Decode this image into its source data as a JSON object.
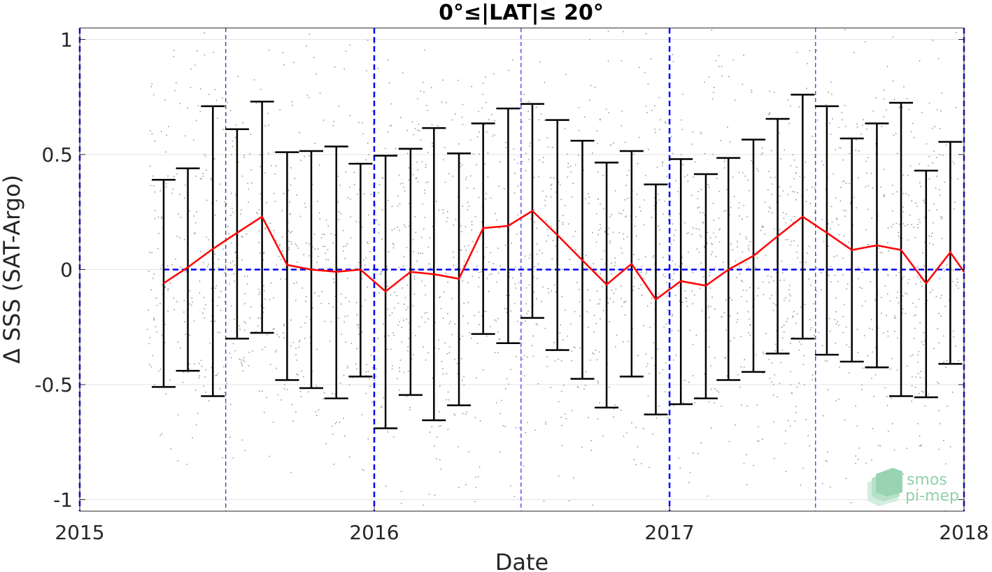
{
  "chart_data": {
    "type": "line",
    "title": "0°≤|LAT|≤ 20°",
    "xlabel": "Date",
    "ylabel": "Δ SSS (SAT-Argo)",
    "xlim": [
      "2015-01-01",
      "2018-01-01"
    ],
    "ylim": [
      -1.05,
      1.05
    ],
    "xtick_labels": [
      "2015",
      "2016",
      "2017",
      "2018"
    ],
    "ytick_values": [
      -1,
      -0.5,
      0,
      0.5,
      1
    ],
    "ytick_labels": [
      "-1",
      "-0.5",
      "0",
      "0.5",
      "1"
    ],
    "grid": true,
    "colors": {
      "mean_line": "#ff0000",
      "error_bars": "#000000",
      "zero_line": "#0000ff",
      "year_lines": "#0000ff",
      "half_year_lines": "#0000ff",
      "scatter": "#9a9a9a"
    },
    "zero_line": 0,
    "year_line_dates": [
      "2015-01-01",
      "2016-01-01",
      "2017-01-01",
      "2018-01-01"
    ],
    "half_year_line_dates": [
      "2015-07-01",
      "2016-07-01",
      "2017-07-01"
    ],
    "series": [
      {
        "type": "errorbar",
        "x": [
          "2015-04-15",
          "2015-05-15",
          "2015-06-15",
          "2015-07-15",
          "2015-08-15",
          "2015-09-15",
          "2015-10-15",
          "2015-11-15",
          "2015-12-15",
          "2016-01-15",
          "2016-02-15",
          "2016-03-15",
          "2016-04-15",
          "2016-05-15",
          "2016-06-15",
          "2016-07-15",
          "2016-08-15",
          "2016-09-15",
          "2016-10-15",
          "2016-11-15",
          "2016-12-15",
          "2017-01-15",
          "2017-02-15",
          "2017-03-15",
          "2017-04-15",
          "2017-05-15",
          "2017-06-15",
          "2017-07-15",
          "2017-08-15",
          "2017-09-15",
          "2017-10-15",
          "2017-11-15",
          "2017-12-15"
        ],
        "mean": [
          -0.06,
          0.01,
          0.09,
          0.16,
          0.23,
          0.02,
          0.0,
          -0.01,
          0.0,
          -0.095,
          -0.01,
          -0.02,
          -0.04,
          0.18,
          0.19,
          0.255,
          0.15,
          0.04,
          -0.065,
          0.025,
          -0.13,
          -0.05,
          -0.07,
          0.0,
          0.06,
          0.145,
          0.23,
          0.16,
          0.085,
          0.105,
          0.085,
          -0.06,
          0.075
        ],
        "upper": [
          0.39,
          0.44,
          0.71,
          0.61,
          0.73,
          0.51,
          0.515,
          0.535,
          0.46,
          0.495,
          0.525,
          0.615,
          0.505,
          0.635,
          0.7,
          0.72,
          0.65,
          0.56,
          0.465,
          0.515,
          0.37,
          0.48,
          0.415,
          0.485,
          0.565,
          0.655,
          0.76,
          0.71,
          0.57,
          0.635,
          0.725,
          0.43,
          0.555
        ],
        "lower": [
          -0.51,
          -0.44,
          -0.55,
          -0.3,
          -0.275,
          -0.48,
          -0.515,
          -0.56,
          -0.465,
          -0.69,
          -0.545,
          -0.655,
          -0.59,
          -0.28,
          -0.32,
          -0.21,
          -0.35,
          -0.475,
          -0.6,
          -0.465,
          -0.63,
          -0.585,
          -0.56,
          -0.48,
          -0.445,
          -0.365,
          -0.3,
          -0.37,
          -0.4,
          -0.425,
          -0.55,
          -0.555,
          -0.41
        ]
      }
    ],
    "trailing_mean": {
      "x": "2018-01-01",
      "value": -0.01
    }
  },
  "logo": {
    "line1": "smos",
    "line2": "pi-mep"
  }
}
